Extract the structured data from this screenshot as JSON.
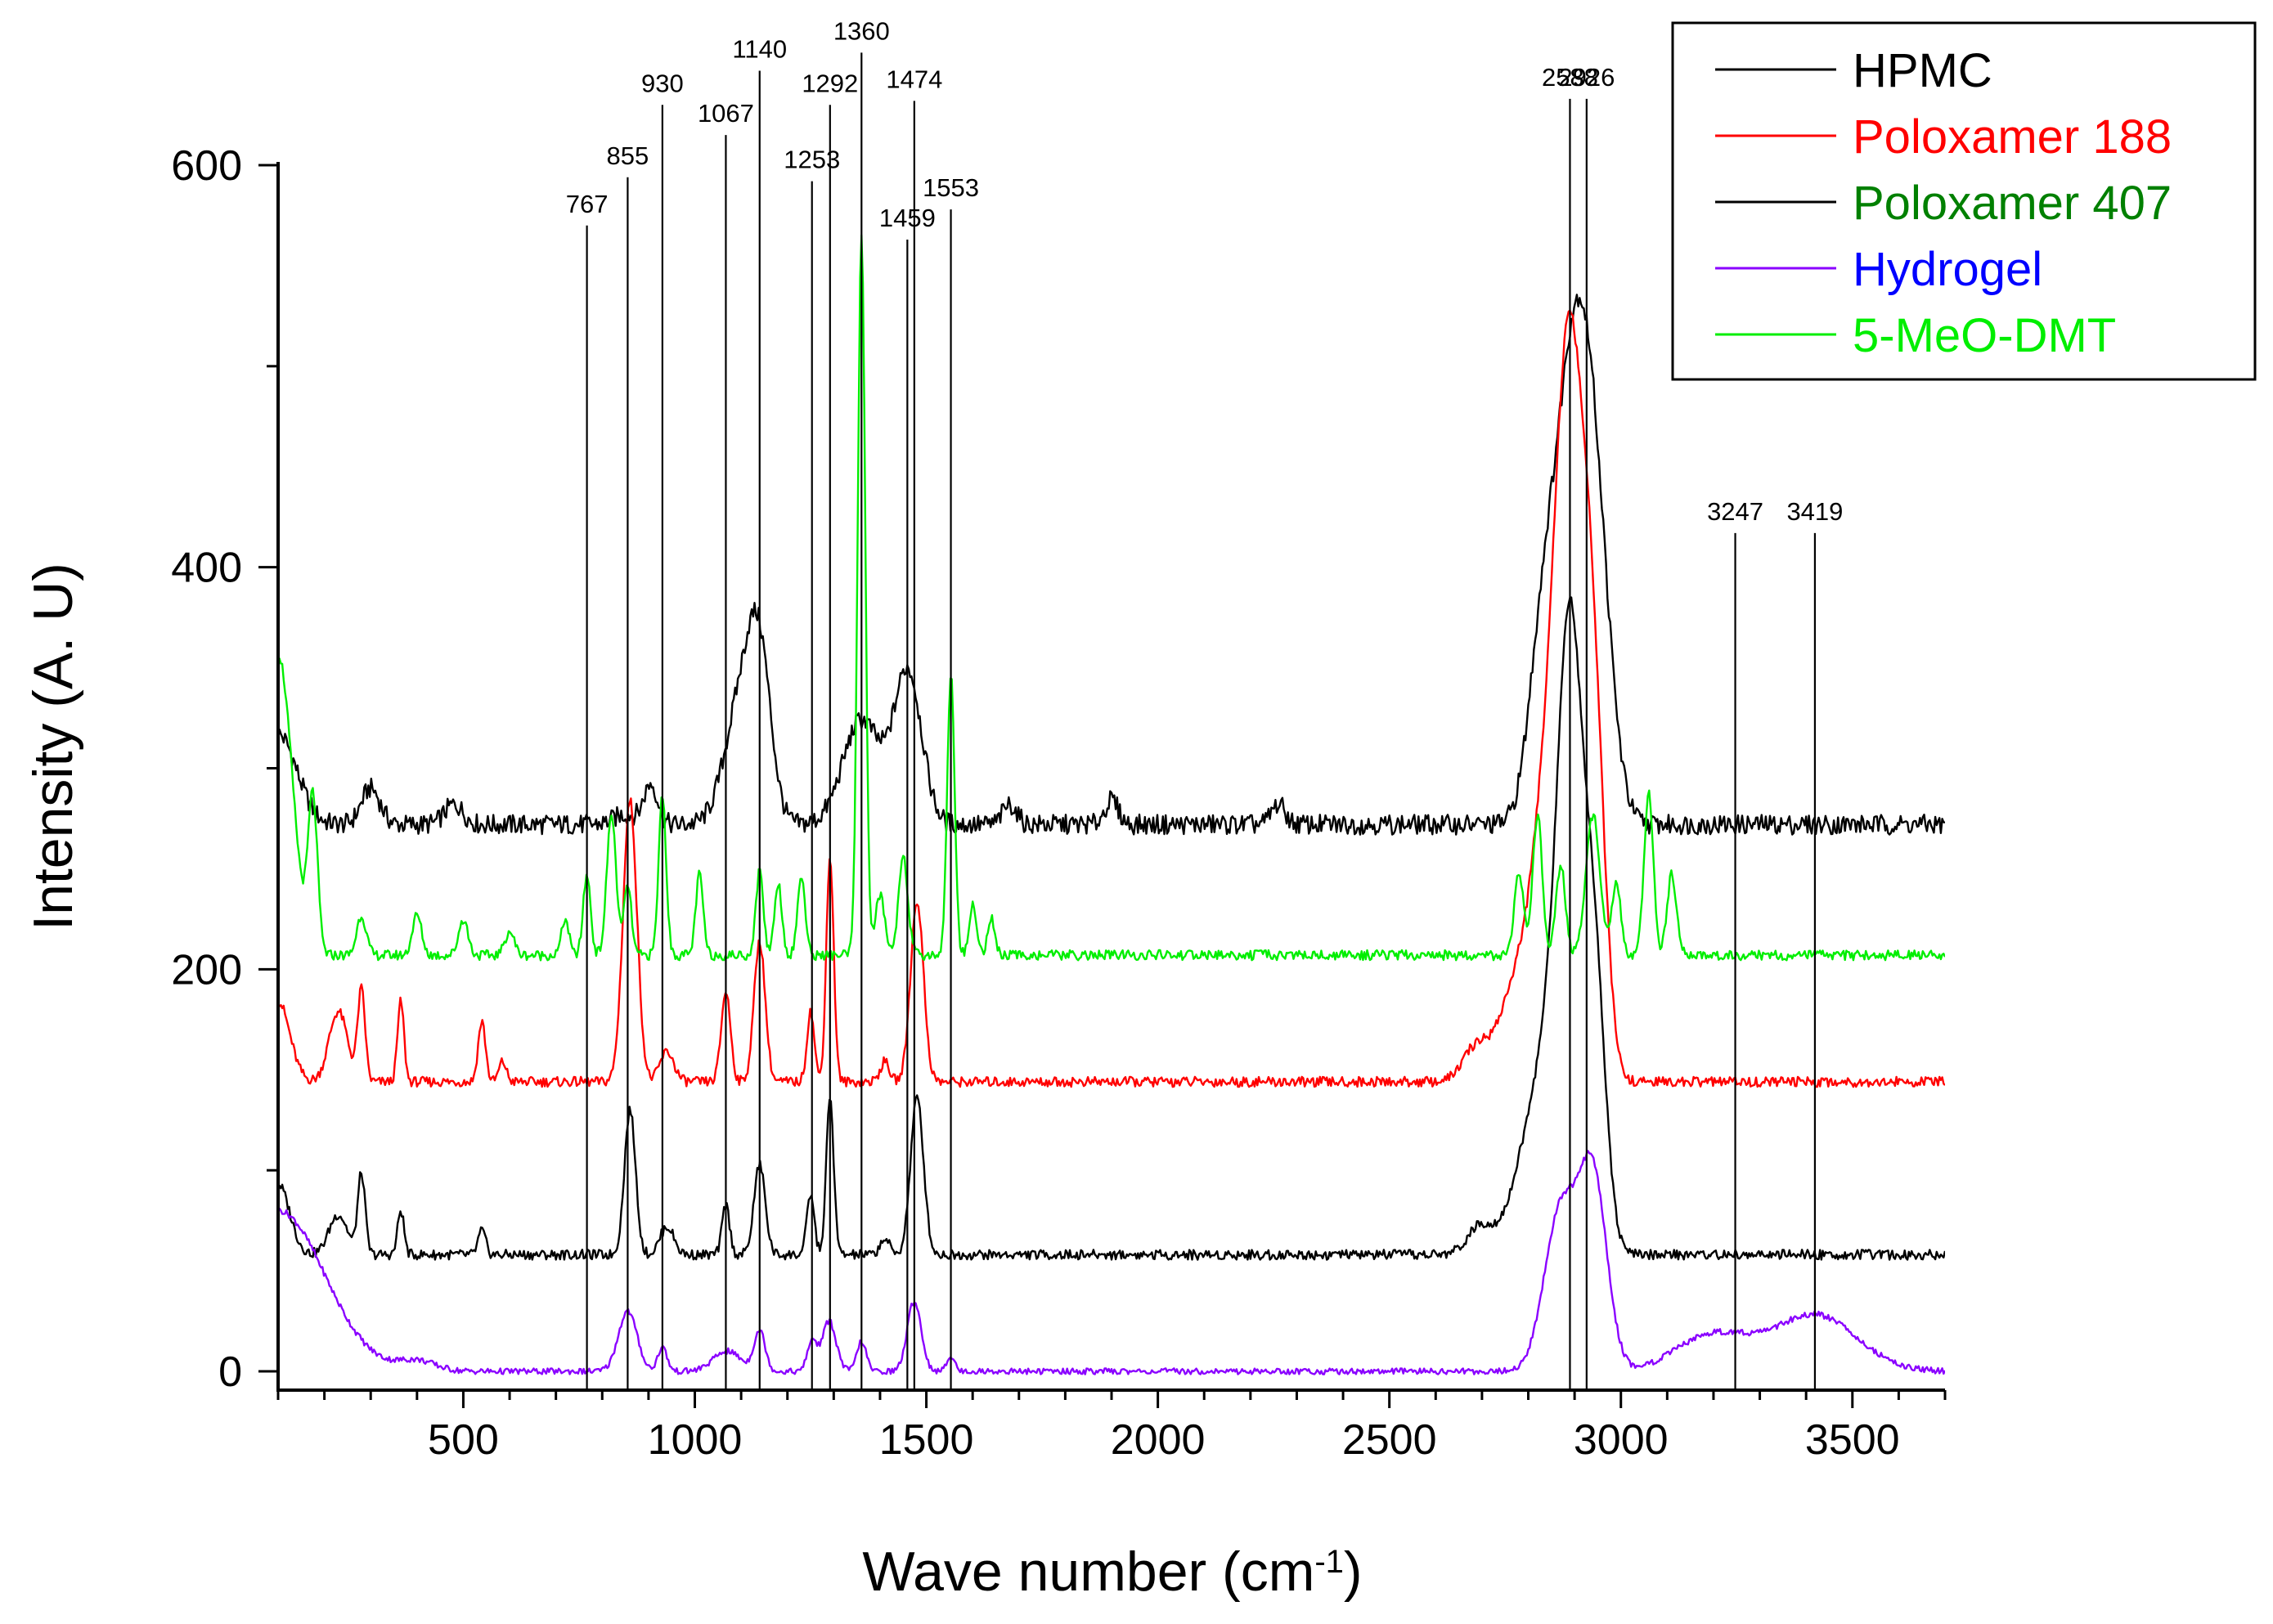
{
  "chart_data": {
    "type": "line",
    "title": "",
    "xlabel": "Wave number (cm",
    "xlabel_sup": "-1",
    "xlabel_close": ")",
    "ylabel": "Intensity (A. U)",
    "xlim": [
      100,
      3700
    ],
    "ylim": [
      -10,
      600
    ],
    "x_ticks": [
      500,
      1000,
      1500,
      2000,
      2500,
      3000,
      3500
    ],
    "x_tick_labels": [
      "500",
      "1000",
      "1500",
      "2000",
      "2500",
      "3000",
      "3500"
    ],
    "y_ticks": [
      0,
      200,
      400,
      600
    ],
    "y_tick_labels": [
      "0",
      "200",
      "400",
      "600"
    ],
    "legend_position": "top-right",
    "series": [
      {
        "name": "HPMC",
        "line_color": "#000000",
        "text_color": "#000000",
        "baseline": 272,
        "peaks": [
          [
            100,
            45,
            40
          ],
          [
            300,
            18,
            20
          ],
          [
            480,
            10,
            20
          ],
          [
            850,
            5,
            25
          ],
          [
            905,
            20,
            15
          ],
          [
            1100,
            60,
            35
          ],
          [
            1140,
            70,
            25
          ],
          [
            1360,
            52,
            40
          ],
          [
            1460,
            76,
            30
          ],
          [
            1680,
            10,
            15
          ],
          [
            1900,
            12,
            15
          ],
          [
            2260,
            10,
            15
          ],
          [
            2830,
            85,
            30
          ],
          [
            2890,
            180,
            35
          ],
          [
            2940,
            155,
            35
          ]
        ]
      },
      {
        "name": "Poloxamer 188",
        "line_color": "#ff0000",
        "text_color": "#ff0000",
        "baseline": 144,
        "peaks": [
          [
            100,
            40,
            25
          ],
          [
            230,
            35,
            20
          ],
          [
            280,
            45,
            8
          ],
          [
            365,
            40,
            7
          ],
          [
            540,
            30,
            8
          ],
          [
            585,
            10,
            8
          ],
          [
            860,
            140,
            15
          ],
          [
            940,
            15,
            15
          ],
          [
            1067,
            45,
            10
          ],
          [
            1140,
            70,
            12
          ],
          [
            1250,
            35,
            8
          ],
          [
            1292,
            112,
            8
          ],
          [
            1410,
            10,
            10
          ],
          [
            1480,
            90,
            14
          ],
          [
            2690,
            18,
            30
          ],
          [
            2760,
            30,
            30
          ],
          [
            2840,
            130,
            40
          ],
          [
            2890,
            300,
            30
          ],
          [
            2940,
            170,
            25
          ]
        ]
      },
      {
        "name": "Poloxamer 407",
        "line_color": "#000000",
        "text_color": "#008000",
        "baseline": 58,
        "peaks": [
          [
            100,
            35,
            25
          ],
          [
            230,
            20,
            20
          ],
          [
            280,
            40,
            8
          ],
          [
            365,
            22,
            7
          ],
          [
            540,
            12,
            8
          ],
          [
            860,
            72,
            12
          ],
          [
            940,
            14,
            15
          ],
          [
            1067,
            25,
            8
          ],
          [
            1140,
            45,
            12
          ],
          [
            1250,
            30,
            8
          ],
          [
            1292,
            78,
            8
          ],
          [
            1410,
            8,
            10
          ],
          [
            1480,
            78,
            14
          ],
          [
            2700,
            15,
            30
          ],
          [
            2780,
            25,
            30
          ],
          [
            2850,
            110,
            40
          ],
          [
            2890,
            240,
            25
          ],
          [
            2940,
            150,
            25
          ]
        ]
      },
      {
        "name": "Hydrogel",
        "line_color": "#8a00ff",
        "text_color": "#0000ff",
        "baseline": 0,
        "peaks": [
          [
            100,
            80,
            100
          ],
          [
            400,
            5,
            40
          ],
          [
            855,
            30,
            20
          ],
          [
            930,
            12,
            10
          ],
          [
            1070,
            10,
            30
          ],
          [
            1140,
            20,
            12
          ],
          [
            1253,
            15,
            10
          ],
          [
            1290,
            25,
            15
          ],
          [
            1360,
            15,
            10
          ],
          [
            1474,
            35,
            15
          ],
          [
            1553,
            8,
            8
          ],
          [
            2870,
            80,
            35
          ],
          [
            2940,
            95,
            30
          ],
          [
            3200,
            18,
            80
          ],
          [
            3420,
            28,
            90
          ]
        ]
      },
      {
        "name": "5-MeO-DMT",
        "line_color": "#00ee00",
        "text_color": "#00ee00",
        "baseline": 207,
        "peaks": [
          [
            100,
            150,
            30
          ],
          [
            175,
            75,
            10
          ],
          [
            280,
            20,
            10
          ],
          [
            400,
            20,
            10
          ],
          [
            500,
            18,
            10
          ],
          [
            600,
            12,
            10
          ],
          [
            720,
            18,
            8
          ],
          [
            767,
            40,
            8
          ],
          [
            820,
            70,
            10
          ],
          [
            855,
            35,
            8
          ],
          [
            930,
            80,
            8
          ],
          [
            1010,
            40,
            8
          ],
          [
            1140,
            42,
            8
          ],
          [
            1180,
            36,
            8
          ],
          [
            1230,
            40,
            8
          ],
          [
            1360,
            360,
            8
          ],
          [
            1400,
            30,
            10
          ],
          [
            1450,
            50,
            10
          ],
          [
            1553,
            140,
            8
          ],
          [
            1600,
            25,
            8
          ],
          [
            1640,
            18,
            8
          ],
          [
            2780,
            40,
            10
          ],
          [
            2820,
            70,
            10
          ],
          [
            2870,
            45,
            10
          ],
          [
            2940,
            70,
            15
          ],
          [
            2990,
            35,
            10
          ],
          [
            3060,
            80,
            10
          ],
          [
            3110,
            40,
            10
          ]
        ]
      }
    ],
    "reference_lines": [
      {
        "x": 767,
        "label": "767",
        "top": 570
      },
      {
        "x": 855,
        "label": "855",
        "top": 594
      },
      {
        "x": 930,
        "label": "930",
        "top": 630
      },
      {
        "x": 1067,
        "label": "1067",
        "top": 615
      },
      {
        "x": 1140,
        "label": "1140",
        "top": 647
      },
      {
        "x": 1253,
        "label": "1253",
        "top": 592
      },
      {
        "x": 1292,
        "label": "1292",
        "top": 630
      },
      {
        "x": 1360,
        "label": "1360",
        "top": 656
      },
      {
        "x": 1459,
        "label": "1459",
        "top": 563
      },
      {
        "x": 1474,
        "label": "1474",
        "top": 632
      },
      {
        "x": 1553,
        "label": "1553",
        "top": 578
      },
      {
        "x": 2588,
        "label": "2588",
        "top": 633,
        "plot_x": 2890
      },
      {
        "x": 2926,
        "label": "2926",
        "top": 633
      },
      {
        "x": 3247,
        "label": "3247",
        "top": 417
      },
      {
        "x": 3419,
        "label": "3419",
        "top": 417
      }
    ]
  }
}
